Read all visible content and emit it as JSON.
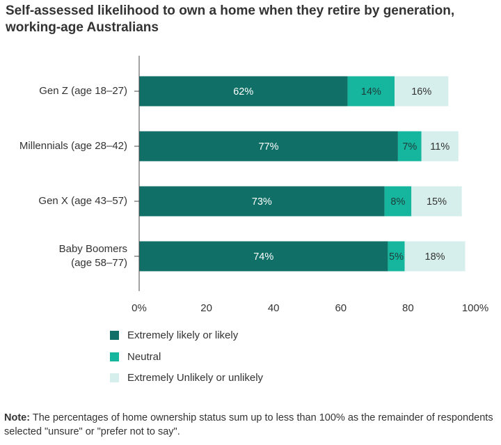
{
  "title_line1": "Self-assessed likelihood to own a home when they retire by generation,",
  "title_line2": "working-age Australians",
  "chart_data": {
    "type": "bar",
    "orientation": "horizontal",
    "stacked": true,
    "categories": [
      [
        "Gen Z (age 18–27)"
      ],
      [
        "Millennials (age 28–42)"
      ],
      [
        "Gen X (age 43–57)"
      ],
      [
        "Baby Boomers",
        "(age 58–77)"
      ]
    ],
    "series": [
      {
        "name": "Extremely likely or likely",
        "values": [
          62,
          77,
          73,
          74
        ],
        "labels": [
          "62%",
          "77%",
          "73%",
          "74%"
        ],
        "color": "#106f67",
        "label_color": "#ffffff"
      },
      {
        "name": "Neutral",
        "values": [
          14,
          7,
          8,
          5
        ],
        "labels": [
          "14%",
          "7%",
          "8%",
          "5%"
        ],
        "color": "#16b69e",
        "label_color": "#1f3b3a"
      },
      {
        "name": "Extremely Unlikely or unlikely",
        "values": [
          16,
          11,
          15,
          18
        ],
        "labels": [
          "16%",
          "11%",
          "15%",
          "18%"
        ],
        "color": "#d6efec",
        "label_color": "#333333"
      }
    ],
    "xlim": [
      0,
      100
    ],
    "ticks": [
      0,
      20,
      40,
      60,
      80,
      100
    ],
    "tick_labels": [
      "0%",
      "20",
      "40",
      "60",
      "80",
      "100%"
    ],
    "grid": false,
    "legend_position": "bottom-center"
  },
  "note_label": "Note:",
  "note_text": "The percentages of home ownership status sum up to less than 100% as the remainder of respondents selected \"unsure\" or \"prefer not to say\"."
}
